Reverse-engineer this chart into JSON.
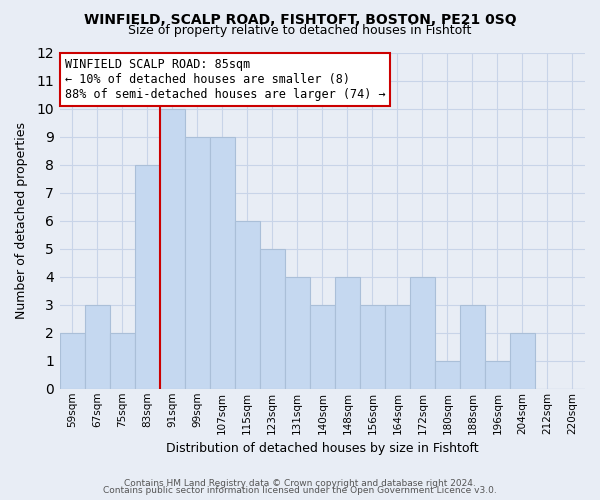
{
  "title": "WINFIELD, SCALP ROAD, FISHTOFT, BOSTON, PE21 0SQ",
  "subtitle": "Size of property relative to detached houses in Fishtoft",
  "xlabel": "Distribution of detached houses by size in Fishtoft",
  "ylabel": "Number of detached properties",
  "categories": [
    "59sqm",
    "67sqm",
    "75sqm",
    "83sqm",
    "91sqm",
    "99sqm",
    "107sqm",
    "115sqm",
    "123sqm",
    "131sqm",
    "140sqm",
    "148sqm",
    "156sqm",
    "164sqm",
    "172sqm",
    "180sqm",
    "188sqm",
    "196sqm",
    "204sqm",
    "212sqm",
    "220sqm"
  ],
  "values": [
    2,
    3,
    2,
    8,
    10,
    9,
    9,
    6,
    5,
    4,
    3,
    4,
    3,
    3,
    4,
    1,
    3,
    1,
    2,
    0,
    0
  ],
  "bar_color": "#c5d8f0",
  "bar_edge_color": "#aabfd8",
  "vline_color": "#cc0000",
  "vline_index": 4,
  "annotation_title": "WINFIELD SCALP ROAD: 85sqm",
  "annotation_line1": "← 10% of detached houses are smaller (8)",
  "annotation_line2": "88% of semi-detached houses are larger (74) →",
  "annotation_box_color": "#ffffff",
  "annotation_box_edge": "#cc0000",
  "ylim": [
    0,
    12
  ],
  "yticks": [
    0,
    1,
    2,
    3,
    4,
    5,
    6,
    7,
    8,
    9,
    10,
    11,
    12
  ],
  "grid_color": "#c8d4e8",
  "background_color": "#e8edf5",
  "footnote1": "Contains HM Land Registry data © Crown copyright and database right 2024.",
  "footnote2": "Contains public sector information licensed under the Open Government Licence v3.0."
}
